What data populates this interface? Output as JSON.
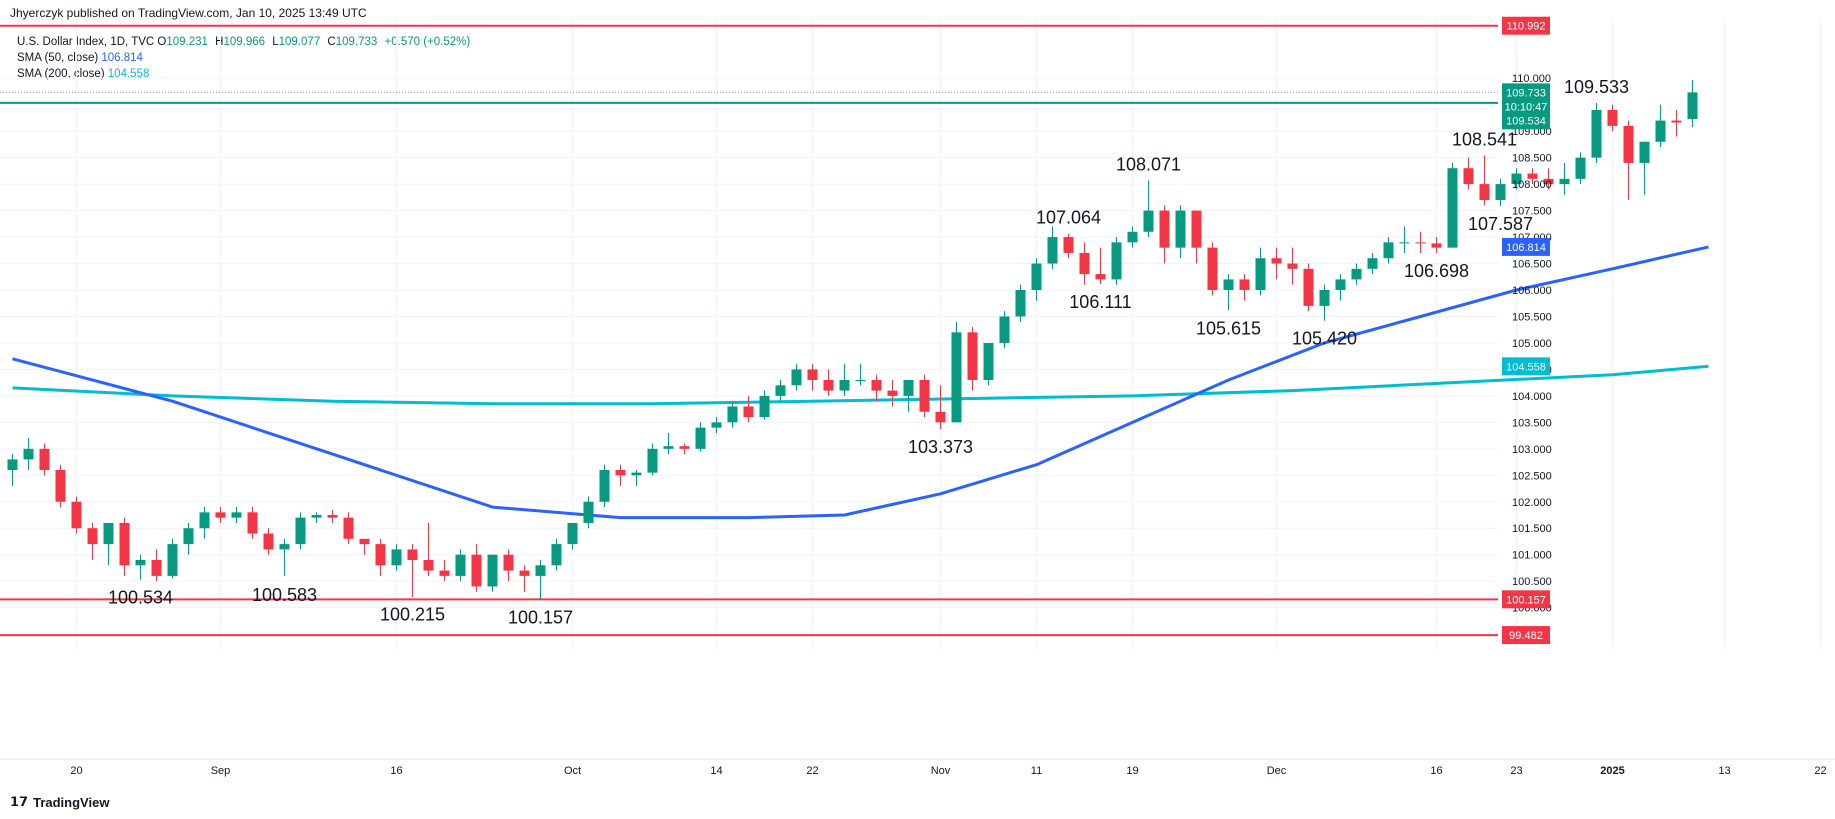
{
  "header": {
    "publisher": "Jhyerczyk published on TradingView.com, Jan 10, 2025 13:49 UTC"
  },
  "legend": {
    "symbol": "U.S. Dollar Index, 1D, TVC",
    "ohlc": {
      "open_label": "O",
      "open": "109.231",
      "high_label": "H",
      "high": "109.966",
      "low_label": "L",
      "low": "109.077",
      "close_label": "C",
      "close": "109.733",
      "change": "+0.570 (+0.52%)"
    },
    "sma50": {
      "label": "SMA (50, close)",
      "value": "106.814",
      "color": "#2962ff"
    },
    "sma200": {
      "label": "SMA (200, close)",
      "value": "104.558",
      "color": "#00bcd4"
    }
  },
  "footer": {
    "brand": "TradingView"
  },
  "colors": {
    "up": "#089981",
    "down": "#f23645",
    "grid": "#f0f3fa",
    "text": "#131722"
  },
  "chart_data": {
    "type": "candlestick",
    "y_axis": {
      "min": 99.2,
      "max": 111.1,
      "ticks": [
        "100.000",
        "100.500",
        "101.000",
        "101.500",
        "102.000",
        "102.500",
        "103.000",
        "103.500",
        "104.000",
        "104.500",
        "105.000",
        "105.500",
        "106.000",
        "106.500",
        "107.000",
        "107.500",
        "108.000",
        "108.500",
        "109.000",
        "110.000"
      ]
    },
    "x_axis": {
      "ticks": [
        {
          "label": "20",
          "bar": 4
        },
        {
          "label": "Sep",
          "bar": 13
        },
        {
          "label": "16",
          "bar": 24
        },
        {
          "label": "Oct",
          "bar": 35
        },
        {
          "label": "14",
          "bar": 44
        },
        {
          "label": "22",
          "bar": 50
        },
        {
          "label": "Nov",
          "bar": 58
        },
        {
          "label": "11",
          "bar": 64
        },
        {
          "label": "19",
          "bar": 70
        },
        {
          "label": "Dec",
          "bar": 79
        },
        {
          "label": "16",
          "bar": 89
        },
        {
          "label": "23",
          "bar": 94
        },
        {
          "label": "2025",
          "bar": 100
        },
        {
          "label": "13",
          "bar": 107
        },
        {
          "label": "22",
          "bar": 113
        }
      ]
    },
    "candles": [
      [
        102.6,
        102.9,
        102.3,
        102.8
      ],
      [
        102.8,
        103.2,
        102.6,
        103.0
      ],
      [
        103.0,
        103.1,
        102.5,
        102.6
      ],
      [
        102.6,
        102.7,
        101.9,
        102.0
      ],
      [
        102.0,
        102.1,
        101.4,
        101.5
      ],
      [
        101.5,
        101.6,
        100.9,
        101.2
      ],
      [
        101.2,
        101.6,
        100.8,
        101.6
      ],
      [
        101.6,
        101.7,
        100.6,
        100.8
      ],
      [
        100.8,
        101.0,
        100.53,
        100.9
      ],
      [
        100.9,
        101.1,
        100.5,
        100.6
      ],
      [
        100.6,
        101.3,
        100.55,
        101.2
      ],
      [
        101.2,
        101.6,
        101.0,
        101.5
      ],
      [
        101.5,
        101.9,
        101.3,
        101.8
      ],
      [
        101.8,
        101.9,
        101.6,
        101.7
      ],
      [
        101.7,
        101.9,
        101.6,
        101.8
      ],
      [
        101.8,
        101.9,
        101.3,
        101.4
      ],
      [
        101.4,
        101.5,
        101.0,
        101.1
      ],
      [
        101.1,
        101.3,
        100.6,
        101.2
      ],
      [
        101.2,
        101.8,
        101.1,
        101.7
      ],
      [
        101.7,
        101.8,
        101.6,
        101.75
      ],
      [
        101.75,
        101.85,
        101.6,
        101.7
      ],
      [
        101.7,
        101.8,
        101.2,
        101.3
      ],
      [
        101.3,
        101.3,
        101.0,
        101.2
      ],
      [
        101.2,
        101.3,
        100.6,
        100.8
      ],
      [
        100.8,
        101.2,
        100.7,
        101.1
      ],
      [
        101.1,
        101.2,
        100.2,
        100.9
      ],
      [
        100.9,
        101.6,
        100.6,
        100.7
      ],
      [
        100.7,
        100.9,
        100.5,
        100.6
      ],
      [
        100.6,
        101.1,
        100.5,
        101.0
      ],
      [
        101.0,
        101.2,
        100.3,
        100.4
      ],
      [
        100.4,
        101.0,
        100.3,
        101.0
      ],
      [
        101.0,
        101.1,
        100.5,
        100.7
      ],
      [
        100.7,
        100.8,
        100.3,
        100.6
      ],
      [
        100.6,
        100.9,
        100.16,
        100.8
      ],
      [
        100.8,
        101.3,
        100.7,
        101.2
      ],
      [
        101.2,
        101.6,
        101.1,
        101.6
      ],
      [
        101.6,
        102.1,
        101.5,
        102.0
      ],
      [
        102.0,
        102.7,
        101.9,
        102.6
      ],
      [
        102.6,
        102.7,
        102.3,
        102.5
      ],
      [
        102.5,
        102.6,
        102.3,
        102.55
      ],
      [
        102.55,
        103.1,
        102.5,
        103.0
      ],
      [
        103.0,
        103.3,
        102.9,
        103.05
      ],
      [
        103.05,
        103.1,
        102.9,
        103.0
      ],
      [
        103.0,
        103.5,
        102.95,
        103.4
      ],
      [
        103.4,
        103.6,
        103.3,
        103.5
      ],
      [
        103.5,
        103.9,
        103.4,
        103.8
      ],
      [
        103.8,
        104.0,
        103.5,
        103.6
      ],
      [
        103.6,
        104.1,
        103.55,
        104.0
      ],
      [
        104.0,
        104.3,
        103.9,
        104.2
      ],
      [
        104.2,
        104.6,
        104.1,
        104.5
      ],
      [
        104.5,
        104.6,
        104.1,
        104.3
      ],
      [
        104.3,
        104.5,
        104.0,
        104.1
      ],
      [
        104.1,
        104.6,
        104.0,
        104.3
      ],
      [
        104.3,
        104.6,
        104.2,
        104.3
      ],
      [
        104.3,
        104.4,
        103.9,
        104.1
      ],
      [
        104.1,
        104.3,
        103.8,
        104.0
      ],
      [
        104.0,
        104.3,
        103.7,
        104.3
      ],
      [
        104.3,
        104.4,
        103.6,
        103.7
      ],
      [
        103.7,
        104.2,
        103.37,
        103.5
      ],
      [
        103.5,
        105.4,
        103.5,
        105.2
      ],
      [
        105.2,
        105.3,
        104.1,
        104.3
      ],
      [
        104.3,
        105.0,
        104.2,
        105.0
      ],
      [
        105.0,
        105.6,
        104.9,
        105.5
      ],
      [
        105.5,
        106.1,
        105.4,
        106.0
      ],
      [
        106.0,
        106.6,
        105.8,
        106.5
      ],
      [
        106.5,
        107.2,
        106.4,
        107.0
      ],
      [
        107.0,
        107.06,
        106.6,
        106.7
      ],
      [
        106.7,
        106.9,
        106.1,
        106.3
      ],
      [
        106.3,
        106.8,
        106.11,
        106.2
      ],
      [
        106.2,
        107.0,
        106.1,
        106.9
      ],
      [
        106.9,
        107.2,
        106.8,
        107.1
      ],
      [
        107.1,
        108.07,
        107.0,
        107.5
      ],
      [
        107.5,
        107.6,
        106.5,
        106.8
      ],
      [
        106.8,
        107.6,
        106.6,
        107.5
      ],
      [
        107.5,
        107.5,
        106.5,
        106.8
      ],
      [
        106.8,
        106.9,
        105.9,
        106.0
      ],
      [
        106.0,
        106.3,
        105.62,
        106.2
      ],
      [
        106.2,
        106.3,
        105.8,
        106.0
      ],
      [
        106.0,
        106.8,
        105.9,
        106.6
      ],
      [
        106.6,
        106.8,
        106.2,
        106.5
      ],
      [
        106.5,
        106.8,
        106.1,
        106.4
      ],
      [
        106.4,
        106.5,
        105.6,
        105.7
      ],
      [
        105.7,
        106.1,
        105.42,
        106.0
      ],
      [
        106.0,
        106.3,
        105.8,
        106.2
      ],
      [
        106.2,
        106.5,
        106.1,
        106.4
      ],
      [
        106.4,
        106.7,
        106.3,
        106.6
      ],
      [
        106.6,
        107.0,
        106.5,
        106.9
      ],
      [
        106.9,
        107.2,
        106.7,
        106.9
      ],
      [
        106.9,
        107.1,
        106.7,
        106.88
      ],
      [
        106.88,
        107.0,
        106.698,
        106.8
      ],
      [
        106.8,
        108.4,
        106.8,
        108.3
      ],
      [
        108.3,
        108.5,
        107.9,
        108.0
      ],
      [
        108.0,
        108.541,
        107.6,
        107.7
      ],
      [
        107.7,
        108.1,
        107.587,
        108.0
      ],
      [
        108.0,
        108.3,
        107.9,
        108.2
      ],
      [
        108.2,
        108.3,
        108.0,
        108.1
      ],
      [
        108.1,
        108.3,
        107.9,
        108.0
      ],
      [
        108.0,
        108.4,
        107.8,
        108.1
      ],
      [
        108.1,
        108.6,
        108.0,
        108.5
      ],
      [
        108.5,
        109.533,
        108.4,
        109.4
      ],
      [
        109.4,
        109.5,
        109.0,
        109.1
      ],
      [
        109.1,
        109.2,
        107.7,
        108.4
      ],
      [
        108.4,
        108.8,
        107.8,
        108.8
      ],
      [
        108.8,
        109.5,
        108.7,
        109.2
      ],
      [
        109.2,
        109.4,
        108.9,
        109.163
      ],
      [
        109.231,
        109.966,
        109.077,
        109.733
      ]
    ],
    "sma50": {
      "name": "SMA (50, close)",
      "points": [
        [
          0,
          104.7
        ],
        [
          10,
          103.9
        ],
        [
          20,
          102.9
        ],
        [
          30,
          101.9
        ],
        [
          38,
          101.7
        ],
        [
          46,
          101.7
        ],
        [
          52,
          101.75
        ],
        [
          58,
          102.15
        ],
        [
          64,
          102.7
        ],
        [
          70,
          103.5
        ],
        [
          76,
          104.3
        ],
        [
          82,
          105.0
        ],
        [
          88,
          105.5
        ],
        [
          94,
          106.0
        ],
        [
          100,
          106.4
        ],
        [
          106,
          106.814
        ]
      ]
    },
    "sma200": {
      "name": "SMA (200, close)",
      "points": [
        [
          0,
          104.15
        ],
        [
          10,
          104.0
        ],
        [
          20,
          103.9
        ],
        [
          30,
          103.85
        ],
        [
          40,
          103.85
        ],
        [
          50,
          103.9
        ],
        [
          60,
          103.95
        ],
        [
          70,
          104.0
        ],
        [
          80,
          104.1
        ],
        [
          90,
          104.25
        ],
        [
          100,
          104.4
        ],
        [
          106,
          104.558
        ]
      ]
    },
    "horizontal_lines": [
      {
        "value": 110.992,
        "label": "110.992",
        "color": "#f23645"
      },
      {
        "value": 109.534,
        "label": "109.534",
        "color": "#089981"
      },
      {
        "value": 100.157,
        "label": "100.157",
        "color": "#f23645"
      },
      {
        "value": 99.482,
        "label": "99.482",
        "color": "#f23645"
      }
    ],
    "last_price": {
      "value": 109.733,
      "label": "109.733",
      "countdown": "10:10:47"
    },
    "annotations": [
      {
        "text": "100.534",
        "bar": 8,
        "value": 100.534
      },
      {
        "text": "100.583",
        "bar": 17,
        "value": 100.583
      },
      {
        "text": "100.215",
        "bar": 25,
        "value": 100.215
      },
      {
        "text": "100.157",
        "bar": 33,
        "value": 100.157
      },
      {
        "text": "103.373",
        "bar": 58,
        "value": 103.373
      },
      {
        "text": "107.064",
        "bar": 66,
        "value": 107.064
      },
      {
        "text": "106.111",
        "bar": 68,
        "value": 106.111
      },
      {
        "text": "108.071",
        "bar": 71,
        "value": 108.071
      },
      {
        "text": "105.615",
        "bar": 76,
        "value": 105.615
      },
      {
        "text": "105.420",
        "bar": 82,
        "value": 105.42
      },
      {
        "text": "106.698",
        "bar": 89,
        "value": 106.698
      },
      {
        "text": "108.541",
        "bar": 92,
        "value": 108.541
      },
      {
        "text": "107.587",
        "bar": 93,
        "value": 107.587
      },
      {
        "text": "109.533",
        "bar": 99,
        "value": 109.533
      }
    ]
  }
}
